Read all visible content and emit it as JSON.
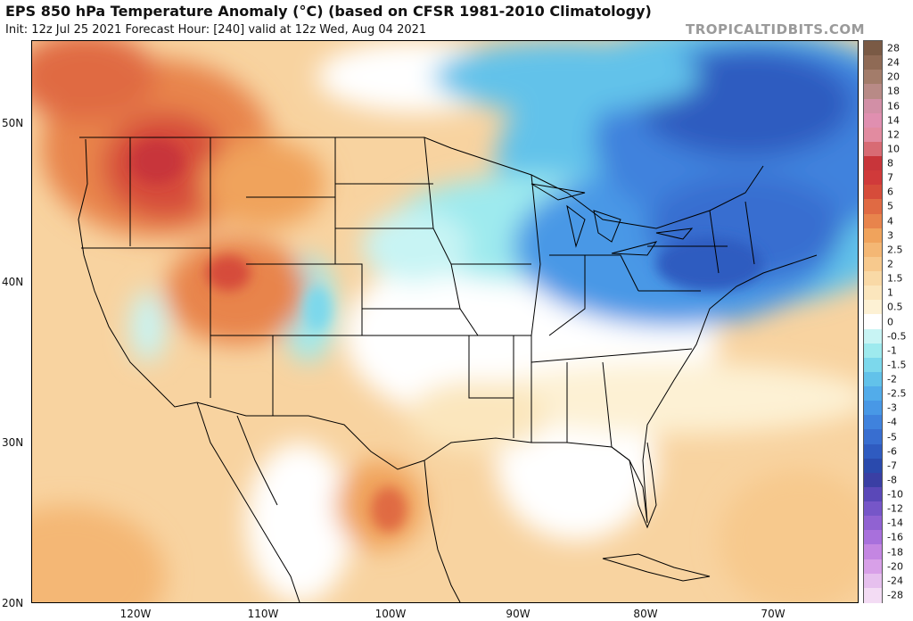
{
  "title": "EPS 850 hPa Temperature Anomaly (°C) (based on CFSR 1981-2010 Climatology)",
  "subtitle": "Init: 12z Jul 25 2021   Forecast Hour: [240]   valid at 12z Wed, Aug 04 2021",
  "brand": "TROPICALTIDBITS.COM",
  "lat_labels": [
    "50N",
    "40N",
    "30N",
    "20N"
  ],
  "lon_labels": [
    "120W",
    "110W",
    "100W",
    "90W",
    "80W",
    "70W"
  ],
  "colorbar": {
    "labels": [
      "28",
      "24",
      "20",
      "18",
      "16",
      "14",
      "12",
      "10",
      "8",
      "7",
      "6",
      "5",
      "4",
      "3",
      "2.5",
      "2",
      "1.5",
      "1",
      "0.5",
      "0",
      "-0.5",
      "-1",
      "-1.5",
      "-2",
      "-2.5",
      "-3",
      "-4",
      "-5",
      "-6",
      "-7",
      "-8",
      "-10",
      "-12",
      "-14",
      "-16",
      "-18",
      "-20",
      "-24",
      "-28"
    ],
    "colors": [
      "#7a5a45",
      "#8f6a55",
      "#a37c6a",
      "#b88a86",
      "#d28fa6",
      "#e08fb0",
      "#e28ba0",
      "#d86b74",
      "#c8353a",
      "#d03a3a",
      "#d64c3a",
      "#e06a43",
      "#e8844c",
      "#f0a35c",
      "#f4b774",
      "#f7c98d",
      "#f9d9a6",
      "#fbe6bd",
      "#fdf1d4",
      "#ffffff",
      "#c8f4f4",
      "#9eeaee",
      "#7cd8ec",
      "#62c2ea",
      "#52acea",
      "#4898e6",
      "#3f82dd",
      "#386ed0",
      "#2f5bc0",
      "#2a4aad",
      "#3a3fa4",
      "#5a48b8",
      "#7656c8",
      "#9062d2",
      "#a870dc",
      "#c486e2",
      "#d8a0e8",
      "#e6c0ee",
      "#f3dcf4"
    ]
  }
}
